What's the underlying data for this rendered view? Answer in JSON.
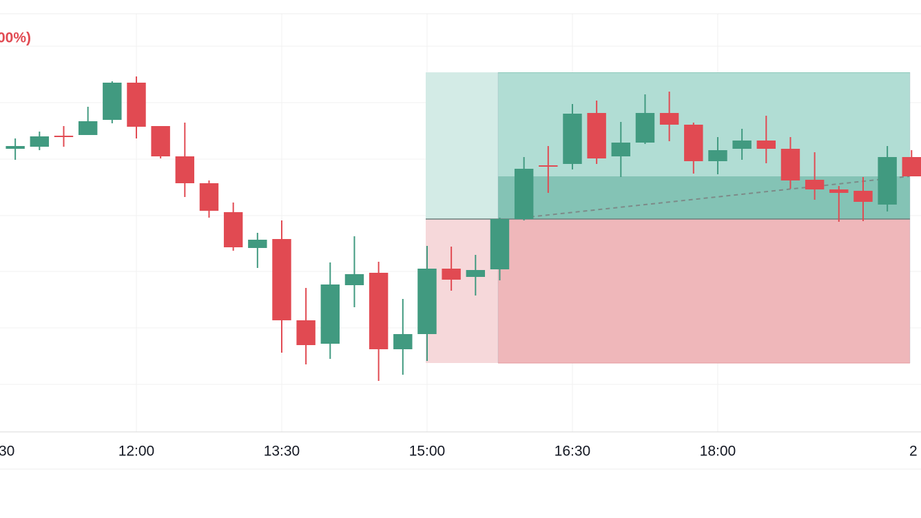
{
  "chart_data": {
    "type": "candlestick",
    "header_text": "00%)",
    "x": [
      0,
      1,
      2,
      3,
      4,
      5,
      6,
      7,
      8,
      9,
      10,
      11,
      12,
      13,
      14,
      15,
      16,
      17,
      18,
      19,
      20,
      21,
      22,
      23,
      24,
      25,
      26,
      27,
      28,
      29,
      30,
      31,
      32,
      33,
      34,
      35,
      36,
      37
    ],
    "open": [
      411,
      414,
      430,
      431,
      453,
      507,
      444,
      400,
      361,
      319,
      267,
      280,
      162,
      128,
      213,
      231,
      120,
      142,
      237,
      225,
      236,
      309,
      387,
      389,
      463,
      400,
      420,
      463,
      446,
      393,
      411,
      423,
      411,
      366,
      352,
      350,
      330,
      399
    ],
    "high": [
      426,
      436,
      444,
      472,
      509,
      516,
      444,
      449,
      365,
      333,
      289,
      307,
      209,
      246,
      284,
      247,
      193,
      270,
      269,
      257,
      311,
      399,
      415,
      476,
      481,
      450,
      490,
      494,
      449,
      428,
      440,
      459,
      428,
      406,
      357,
      370,
      415,
      409
    ],
    "low": [
      395,
      409,
      414,
      431,
      448,
      426,
      397,
      341,
      311,
      263,
      238,
      115,
      98,
      106,
      181,
      74,
      83,
      103,
      205,
      198,
      220,
      307,
      347,
      381,
      389,
      370,
      418,
      422,
      375,
      374,
      395,
      390,
      353,
      337,
      305,
      306,
      320,
      371
    ],
    "close": [
      415,
      429,
      428,
      451,
      507,
      443,
      400,
      361,
      321,
      268,
      279,
      162,
      126,
      214,
      229,
      120,
      142,
      237,
      221,
      235,
      309,
      382,
      385,
      462,
      397,
      420,
      463,
      446,
      393,
      409,
      423,
      411,
      365,
      352,
      347,
      334,
      399,
      371
    ],
    "up_color": "#419a80",
    "down_color": "#e14a52",
    "xlim": [
      -0.63,
      37.39
    ],
    "ylim": [
      0,
      607
    ],
    "xticks": [
      {
        "value": -1,
        "label": "30"
      },
      {
        "value": 5,
        "label": "12:00"
      },
      {
        "value": 11,
        "label": "13:30"
      },
      {
        "value": 17,
        "label": "15:00"
      },
      {
        "value": 23,
        "label": "16:30"
      },
      {
        "value": 29,
        "label": "18:00"
      },
      {
        "value": 41,
        "label": "2"
      }
    ],
    "yticks": [
      69,
      151,
      233,
      314,
      396,
      478,
      560
    ],
    "grid": true
  }
}
